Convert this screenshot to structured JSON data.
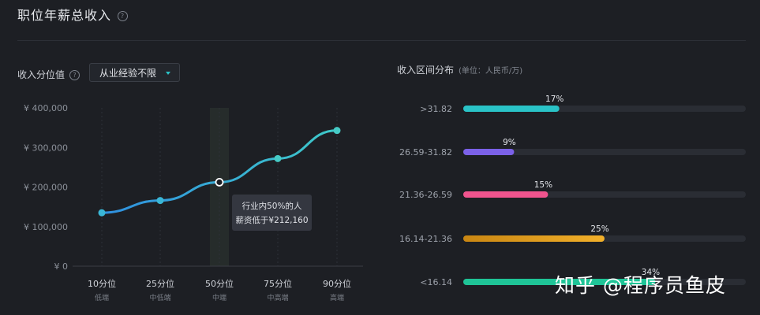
{
  "header": {
    "title": "职位年薪总收入",
    "help_icon": "?"
  },
  "left_panel": {
    "label": "收入分位值",
    "help_icon": "?",
    "dropdown": {
      "selected": "从业经验不限",
      "accent": "#2ac3c7"
    }
  },
  "right_panel": {
    "title": "收入区间分布",
    "unit": "(单位：人民币/万)"
  },
  "tooltip": {
    "line1": "行业内50%的人",
    "line2": "薪资低于¥212,160"
  },
  "watermark": "知乎 @程序员鱼皮",
  "chart_data": [
    {
      "type": "line",
      "x": [
        "10分位",
        "25分位",
        "50分位",
        "75分位",
        "90分位"
      ],
      "x_sublabels": [
        "低端",
        "中低端",
        "中端",
        "中高端",
        "高端"
      ],
      "values": [
        135000,
        166000,
        212160,
        272000,
        343000
      ],
      "y_ticks": [
        "¥ 0",
        "¥ 100,000",
        "¥ 200,000",
        "¥ 300,000",
        "¥ 400,000"
      ],
      "ylim": [
        0,
        400000
      ],
      "highlight_index": 2,
      "grid": "vertical",
      "colors": {
        "start": "#2f8fe0",
        "end": "#3ec9c9"
      }
    },
    {
      "type": "bar",
      "orientation": "horizontal",
      "categories": [
        ">31.82",
        "26.59-31.82",
        "21.36-26.59",
        "16.14-21.36",
        "<16.14"
      ],
      "values": [
        17,
        9,
        15,
        25,
        34
      ],
      "value_labels": [
        "17%",
        "9%",
        "15%",
        "25%",
        "34%"
      ],
      "xlim": [
        0,
        50
      ],
      "colors": [
        "#2ac3c7",
        "#7b61e8",
        "#f0548e",
        "#e8a21c",
        "#1fc497"
      ]
    }
  ]
}
